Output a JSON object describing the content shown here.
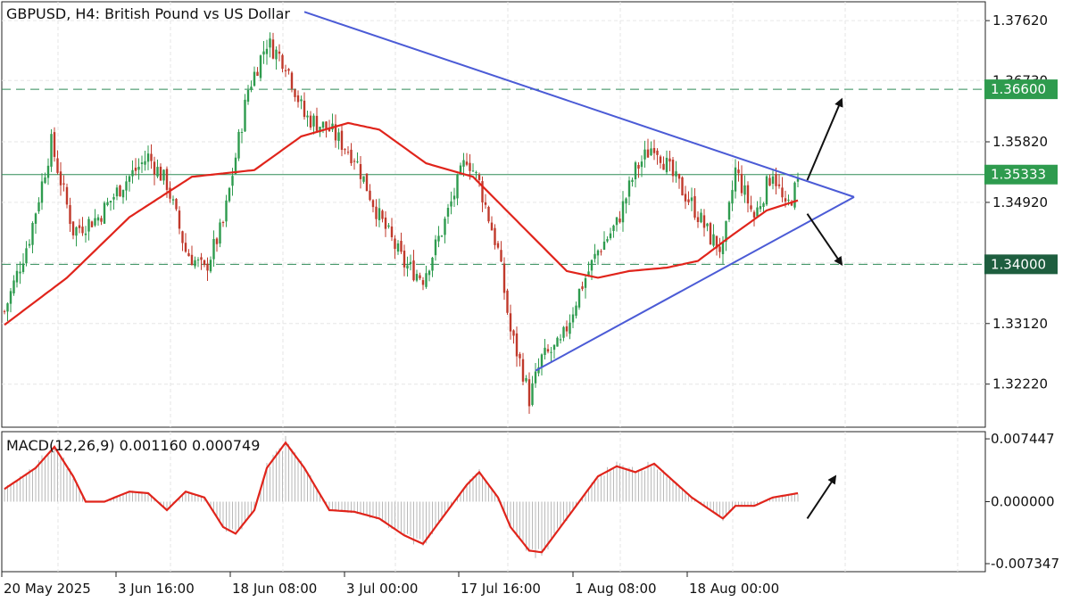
{
  "header": {
    "title": "GBPUSD, H4:  British Pound vs US Dollar"
  },
  "macd_header": {
    "label": "MACD(12,26,9) 0.001160 0.000749"
  },
  "colors": {
    "bull": "#2e9b4e",
    "bear": "#c0392b",
    "ma": "#e0241b",
    "trend": "#4b5bd6",
    "level": "#2e8b57",
    "grid": "#e6e6e6",
    "tag_green": "#2e9b4e",
    "tag_dark": "#1e5e3f",
    "hist": "#b9b9b9",
    "arrow": "#111111"
  },
  "chart_data": [
    {
      "type": "candlestick",
      "title": "GBPUSD, H4:  British Pound vs US Dollar",
      "ylim": [
        1.3158,
        1.379
      ],
      "y_ticks": [
        "1.37620",
        "1.36730",
        "1.35820",
        "1.34920",
        "1.33120",
        "1.32220"
      ],
      "x_ticks": [
        "20 May 2025",
        "3 Jun 16:00",
        "18 Jun 08:00",
        "3 Jul 00:00",
        "17 Jul 16:00",
        "1 Aug 08:00",
        "18 Aug 00:00"
      ],
      "price_tags": [
        {
          "label": "1.36600",
          "value": 1.366,
          "color": "tag_green",
          "line": "dashed"
        },
        {
          "label": "1.35333",
          "value": 1.35333,
          "color": "tag_green",
          "line": "solid"
        },
        {
          "label": "1.34000",
          "value": 1.34,
          "color": "tag_dark",
          "line": "dashed"
        }
      ],
      "close_anchors": [
        [
          0,
          1.333
        ],
        [
          8,
          1.344
        ],
        [
          15,
          1.358
        ],
        [
          22,
          1.345
        ],
        [
          30,
          1.347
        ],
        [
          38,
          1.352
        ],
        [
          46,
          1.356
        ],
        [
          52,
          1.352
        ],
        [
          58,
          1.342
        ],
        [
          64,
          1.339
        ],
        [
          70,
          1.346
        ],
        [
          78,
          1.366
        ],
        [
          84,
          1.373
        ],
        [
          90,
          1.37
        ],
        [
          96,
          1.362
        ],
        [
          104,
          1.36
        ],
        [
          112,
          1.356
        ],
        [
          120,
          1.347
        ],
        [
          128,
          1.34
        ],
        [
          134,
          1.338
        ],
        [
          140,
          1.345
        ],
        [
          148,
          1.356
        ],
        [
          152,
          1.352
        ],
        [
          158,
          1.342
        ],
        [
          162,
          1.33
        ],
        [
          166,
          1.324
        ],
        [
          168,
          1.32
        ],
        [
          172,
          1.326
        ],
        [
          178,
          1.328
        ],
        [
          184,
          1.336
        ],
        [
          190,
          1.342
        ],
        [
          196,
          1.346
        ],
        [
          202,
          1.354
        ],
        [
          208,
          1.358
        ],
        [
          214,
          1.353
        ],
        [
          220,
          1.349
        ],
        [
          226,
          1.344
        ],
        [
          230,
          1.342
        ],
        [
          234,
          1.354
        ],
        [
          240,
          1.347
        ],
        [
          246,
          1.354
        ],
        [
          250,
          1.348
        ],
        [
          254,
          1.352
        ]
      ],
      "ma_anchors": [
        [
          0,
          1.331
        ],
        [
          20,
          1.338
        ],
        [
          40,
          1.347
        ],
        [
          60,
          1.353
        ],
        [
          80,
          1.354
        ],
        [
          95,
          1.359
        ],
        [
          110,
          1.361
        ],
        [
          120,
          1.36
        ],
        [
          135,
          1.355
        ],
        [
          150,
          1.353
        ],
        [
          165,
          1.346
        ],
        [
          180,
          1.339
        ],
        [
          190,
          1.338
        ],
        [
          200,
          1.339
        ],
        [
          212,
          1.3395
        ],
        [
          222,
          1.3405
        ],
        [
          232,
          1.344
        ],
        [
          244,
          1.348
        ],
        [
          254,
          1.3495
        ]
      ],
      "trendlines": [
        {
          "name": "upper",
          "from": [
            96,
            1.3775
          ],
          "to": [
            272,
            1.35
          ]
        },
        {
          "name": "lower",
          "from": [
            170,
            1.3242
          ],
          "to": [
            272,
            1.35
          ]
        }
      ],
      "breakout_arrows": [
        {
          "from": [
            257,
            1.3525
          ],
          "to": [
            268,
            1.3645
          ]
        },
        {
          "from": [
            257,
            1.3475
          ],
          "to": [
            268,
            1.34
          ]
        }
      ]
    },
    {
      "type": "macd",
      "label": "MACD(12,26,9) 0.001160 0.000749",
      "ylim": [
        -0.0083,
        0.0083
      ],
      "y_ticks": [
        "0.007447",
        "0.000000",
        "-0.007347"
      ],
      "y_tick_values": [
        0.007447,
        0.0,
        -0.007347
      ],
      "macd_current": 0.00116,
      "signal_current": 0.000749,
      "signal_anchors": [
        [
          0,
          0.0015
        ],
        [
          10,
          0.004
        ],
        [
          16,
          0.0065
        ],
        [
          22,
          0.003
        ],
        [
          26,
          0.0
        ],
        [
          32,
          0.0
        ],
        [
          40,
          0.0012
        ],
        [
          46,
          0.001
        ],
        [
          52,
          -0.001
        ],
        [
          58,
          0.0012
        ],
        [
          64,
          0.0005
        ],
        [
          70,
          -0.003
        ],
        [
          74,
          -0.0038
        ],
        [
          80,
          -0.001
        ],
        [
          84,
          0.004
        ],
        [
          90,
          0.007
        ],
        [
          96,
          0.004
        ],
        [
          104,
          -0.001
        ],
        [
          112,
          -0.0012
        ],
        [
          120,
          -0.002
        ],
        [
          128,
          -0.004
        ],
        [
          134,
          -0.005
        ],
        [
          140,
          -0.002
        ],
        [
          148,
          0.002
        ],
        [
          152,
          0.0035
        ],
        [
          158,
          0.0005
        ],
        [
          162,
          -0.003
        ],
        [
          168,
          -0.0058
        ],
        [
          172,
          -0.006
        ],
        [
          178,
          -0.003
        ],
        [
          184,
          0.0
        ],
        [
          190,
          0.003
        ],
        [
          196,
          0.0042
        ],
        [
          202,
          0.0035
        ],
        [
          208,
          0.0045
        ],
        [
          214,
          0.0025
        ],
        [
          220,
          0.0005
        ],
        [
          226,
          -0.001
        ],
        [
          230,
          -0.002
        ],
        [
          234,
          -0.0005
        ],
        [
          240,
          -0.0005
        ],
        [
          246,
          0.0005
        ],
        [
          254,
          0.001
        ]
      ],
      "arrow": {
        "from": [
          257,
          -0.002
        ],
        "to": [
          266,
          0.003
        ]
      }
    }
  ]
}
